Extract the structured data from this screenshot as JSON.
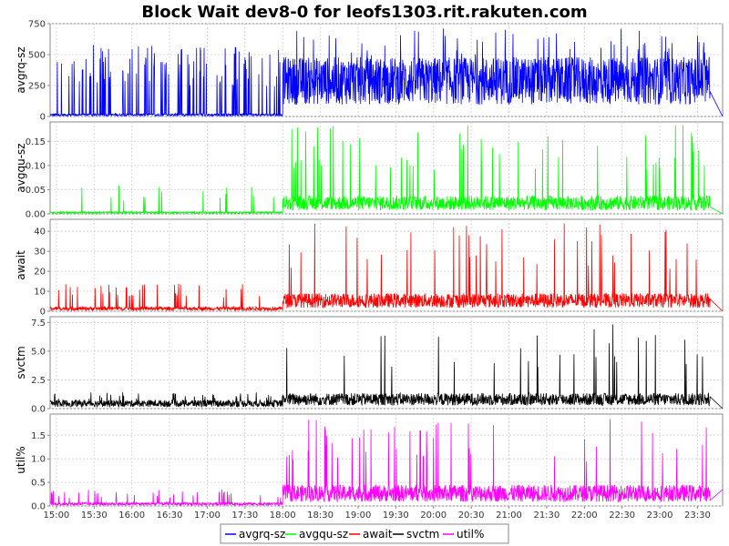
{
  "chart_data": {
    "type": "line",
    "title": "Block Wait dev8-0 for leofs1303.rit.rakuten.com",
    "x_tick_labels": [
      "15:00",
      "15:30",
      "16:00",
      "16:30",
      "17:00",
      "17:30",
      "18:00",
      "18:30",
      "19:00",
      "19:30",
      "20:00",
      "20:30",
      "21:00",
      "21:30",
      "22:00",
      "22:30",
      "23:00",
      "23:30"
    ],
    "x_range": [
      "14:55",
      "23:50"
    ],
    "grid": true,
    "legend_position": "bottom",
    "panels": [
      {
        "name": "avgrq-sz",
        "ylabel": "avgrq-sz",
        "color": "#0000ff",
        "ylim": [
          0,
          750
        ],
        "yticks": [
          "0",
          "250",
          "500",
          "750"
        ],
        "phases": [
          {
            "from": "14:55",
            "to": "18:00",
            "base": 15,
            "spike": 580,
            "spike_prob": 0.12
          },
          {
            "from": "18:00",
            "to": "23:40",
            "base": 320,
            "spike": 720,
            "spike_prob": 0.04
          }
        ],
        "end_drop": 0
      },
      {
        "name": "avgqu-sz",
        "ylabel": "avgqu-sz",
        "color": "#00ff00",
        "ylim": [
          0,
          0.19
        ],
        "yticks": [
          "0.00",
          "0.05",
          "0.10",
          "0.15"
        ],
        "phases": [
          {
            "from": "14:55",
            "to": "18:00",
            "base": 0.003,
            "spike": 0.06,
            "spike_prob": 0.02
          },
          {
            "from": "18:00",
            "to": "23:40",
            "base": 0.025,
            "spike": 0.185,
            "spike_prob": 0.03
          }
        ],
        "end_drop": 0
      },
      {
        "name": "await",
        "ylabel": "await",
        "color": "#ff0000",
        "ylim": [
          0,
          46
        ],
        "yticks": [
          "0",
          "10",
          "20",
          "30",
          "40"
        ],
        "phases": [
          {
            "from": "14:55",
            "to": "18:00",
            "base": 1.5,
            "spike": 14,
            "spike_prob": 0.05
          },
          {
            "from": "18:00",
            "to": "23:40",
            "base": 6,
            "spike": 44,
            "spike_prob": 0.03
          }
        ],
        "end_drop": 0
      },
      {
        "name": "svctm",
        "ylabel": "svctm",
        "color": "#000000",
        "ylim": [
          0,
          8
        ],
        "yticks": [
          "0.0",
          "2.5",
          "5.0",
          "7.5"
        ],
        "phases": [
          {
            "from": "14:55",
            "to": "18:00",
            "base": 0.5,
            "spike": 1.4,
            "spike_prob": 0.05
          },
          {
            "from": "18:00",
            "to": "23:40",
            "base": 0.9,
            "spike": 7.6,
            "spike_prob": 0.02
          }
        ],
        "end_drop": 0
      },
      {
        "name": "util%",
        "ylabel": "util%",
        "color": "#ff00ff",
        "ylim": [
          0,
          1.95
        ],
        "yticks": [
          "0.0",
          "0.5",
          "1.0",
          "1.5"
        ],
        "phases": [
          {
            "from": "14:55",
            "to": "18:00",
            "base": 0.05,
            "spike": 0.35,
            "spike_prob": 0.05
          },
          {
            "from": "18:00",
            "to": "23:40",
            "base": 0.3,
            "spike": 1.85,
            "spike_prob": 0.03
          }
        ],
        "end_drop": 0.35
      }
    ],
    "legend": [
      "avgrq-sz",
      "avgqu-sz",
      "await",
      "svctm",
      "util%"
    ]
  }
}
